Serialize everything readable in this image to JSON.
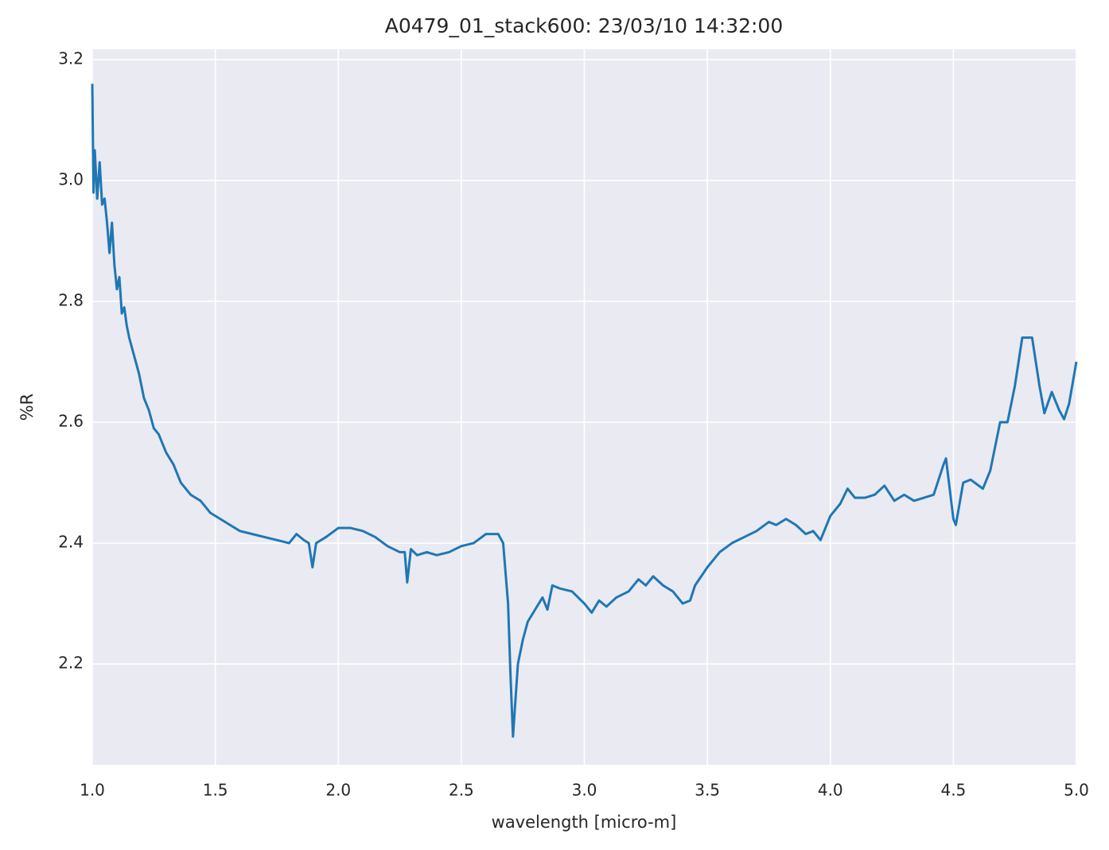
{
  "chart_data": {
    "type": "line",
    "title": "A0479_01_stack600:  23/03/10 14:32:00",
    "xlabel": "wavelength [micro-m]",
    "ylabel": "%R",
    "xlim": [
      1.0,
      5.0
    ],
    "ylim": [
      2.033,
      3.217
    ],
    "xticks": [
      {
        "value": 1,
        "label": "1.0"
      },
      1.5,
      {
        "value": 2,
        "label": "2.0"
      },
      2.5,
      {
        "value": 3,
        "label": "3.0"
      },
      3.5,
      {
        "value": 4,
        "label": "4.0"
      },
      4.5,
      {
        "value": 5,
        "label": "5.0"
      }
    ],
    "yticks": [
      2.2,
      2.4,
      2.6,
      2.8,
      {
        "value": 3,
        "label": "3.0"
      },
      3.2
    ],
    "grid": true,
    "background": "#eaeaf2",
    "series": [
      {
        "color": "#1f77b4",
        "x": [
          1.0,
          1.005,
          1.01,
          1.02,
          1.03,
          1.04,
          1.05,
          1.06,
          1.07,
          1.08,
          1.09,
          1.1,
          1.11,
          1.12,
          1.13,
          1.14,
          1.15,
          1.17,
          1.19,
          1.21,
          1.23,
          1.25,
          1.27,
          1.3,
          1.33,
          1.36,
          1.4,
          1.44,
          1.48,
          1.52,
          1.56,
          1.6,
          1.65,
          1.7,
          1.75,
          1.8,
          1.83,
          1.86,
          1.88,
          1.895,
          1.91,
          1.95,
          2.0,
          2.05,
          2.1,
          2.15,
          2.2,
          2.25,
          2.27,
          2.28,
          2.295,
          2.32,
          2.36,
          2.4,
          2.45,
          2.5,
          2.55,
          2.6,
          2.65,
          2.67,
          2.69,
          2.7,
          2.71,
          2.72,
          2.73,
          2.75,
          2.77,
          2.8,
          2.83,
          2.85,
          2.87,
          2.9,
          2.95,
          3.0,
          3.03,
          3.06,
          3.09,
          3.13,
          3.18,
          3.22,
          3.25,
          3.28,
          3.32,
          3.36,
          3.4,
          3.43,
          3.45,
          3.5,
          3.55,
          3.6,
          3.65,
          3.7,
          3.75,
          3.78,
          3.82,
          3.86,
          3.9,
          3.93,
          3.96,
          4.0,
          4.04,
          4.07,
          4.1,
          4.14,
          4.18,
          4.22,
          4.26,
          4.3,
          4.34,
          4.38,
          4.42,
          4.46,
          4.47,
          4.5,
          4.51,
          4.54,
          4.57,
          4.62,
          4.65,
          4.69,
          4.72,
          4.75,
          4.78,
          4.82,
          4.85,
          4.87,
          4.9,
          4.93,
          4.95,
          4.97,
          5.0
        ],
        "values": [
          3.16,
          2.98,
          3.05,
          2.97,
          3.03,
          2.96,
          2.97,
          2.93,
          2.88,
          2.93,
          2.86,
          2.82,
          2.84,
          2.78,
          2.79,
          2.76,
          2.74,
          2.71,
          2.68,
          2.64,
          2.62,
          2.59,
          2.58,
          2.55,
          2.53,
          2.5,
          2.48,
          2.47,
          2.45,
          2.44,
          2.43,
          2.42,
          2.415,
          2.41,
          2.405,
          2.4,
          2.415,
          2.405,
          2.4,
          2.36,
          2.4,
          2.41,
          2.425,
          2.425,
          2.42,
          2.41,
          2.395,
          2.385,
          2.385,
          2.335,
          2.39,
          2.38,
          2.385,
          2.38,
          2.385,
          2.395,
          2.4,
          2.415,
          2.415,
          2.4,
          2.3,
          2.18,
          2.08,
          2.14,
          2.2,
          2.24,
          2.27,
          2.29,
          2.31,
          2.29,
          2.33,
          2.325,
          2.32,
          2.3,
          2.285,
          2.305,
          2.295,
          2.31,
          2.32,
          2.34,
          2.33,
          2.345,
          2.33,
          2.32,
          2.3,
          2.305,
          2.33,
          2.36,
          2.385,
          2.4,
          2.41,
          2.42,
          2.435,
          2.43,
          2.44,
          2.43,
          2.415,
          2.42,
          2.405,
          2.445,
          2.465,
          2.49,
          2.475,
          2.475,
          2.48,
          2.495,
          2.47,
          2.48,
          2.47,
          2.475,
          2.48,
          2.53,
          2.54,
          2.44,
          2.43,
          2.5,
          2.505,
          2.49,
          2.52,
          2.6,
          2.6,
          2.66,
          2.74,
          2.74,
          2.66,
          2.615,
          2.65,
          2.62,
          2.605,
          2.63,
          2.7
        ]
      }
    ]
  }
}
